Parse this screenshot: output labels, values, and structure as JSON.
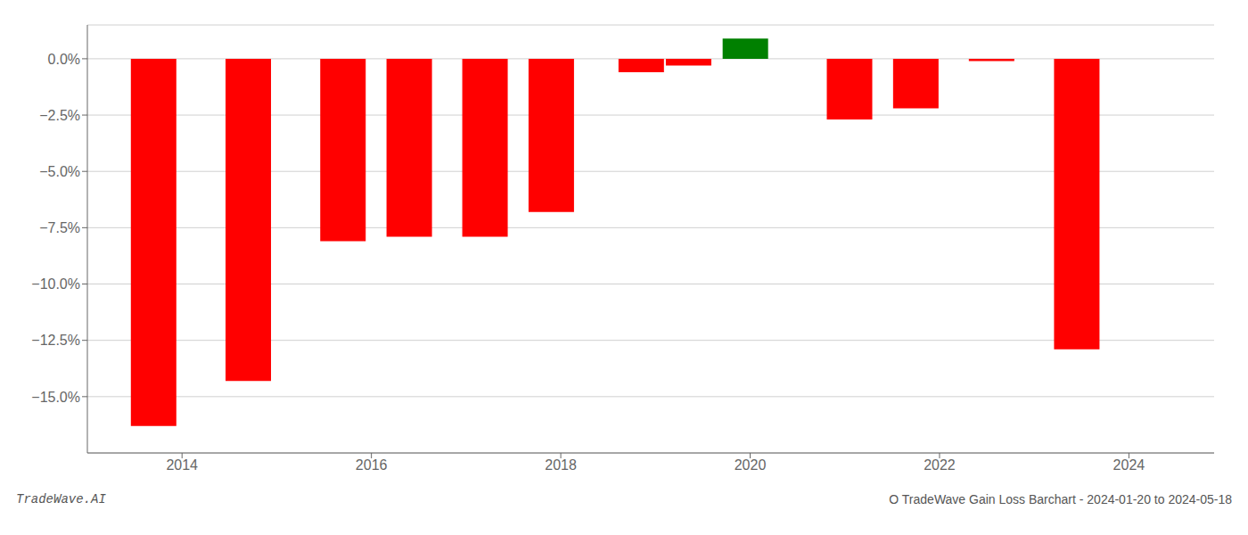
{
  "chart_data": {
    "type": "bar",
    "title": "O TradeWave Gain Loss Barchart - 2024-01-20 to 2024-05-18",
    "annotations": [
      "TradeWave.AI"
    ],
    "x": [
      2013.7,
      2014.7,
      2015.7,
      2016.4,
      2017.2,
      2017.9,
      2018.85,
      2019.35,
      2019.95,
      2021.05,
      2021.75,
      2022.55,
      2023.45
    ],
    "values": [
      -0.163,
      -0.143,
      -0.081,
      -0.079,
      -0.079,
      -0.068,
      -0.006,
      -0.003,
      0.009,
      -0.027,
      -0.022,
      -0.001,
      -0.129
    ],
    "colors": [
      "#ff0000",
      "#ff0000",
      "#ff0000",
      "#ff0000",
      "#ff0000",
      "#ff0000",
      "#ff0000",
      "#ff0000",
      "#008000",
      "#ff0000",
      "#ff0000",
      "#ff0000",
      "#ff0000"
    ],
    "xlim": [
      2013.0,
      2024.9
    ],
    "xticks": [
      2014,
      2016,
      2018,
      2020,
      2022,
      2024
    ],
    "ylim": [
      -0.175,
      0.015
    ],
    "yticks": [
      {
        "value": 0.0,
        "label": "0.0%"
      },
      {
        "value": -0.025,
        "label": "−2.5%"
      },
      {
        "value": -0.05,
        "label": "−5.0%"
      },
      {
        "value": -0.075,
        "label": "−7.5%"
      },
      {
        "value": -0.1,
        "label": "−10.0%"
      },
      {
        "value": -0.125,
        "label": "−12.5%"
      },
      {
        "value": -0.15,
        "label": "−15.0%"
      }
    ],
    "grid": true
  }
}
